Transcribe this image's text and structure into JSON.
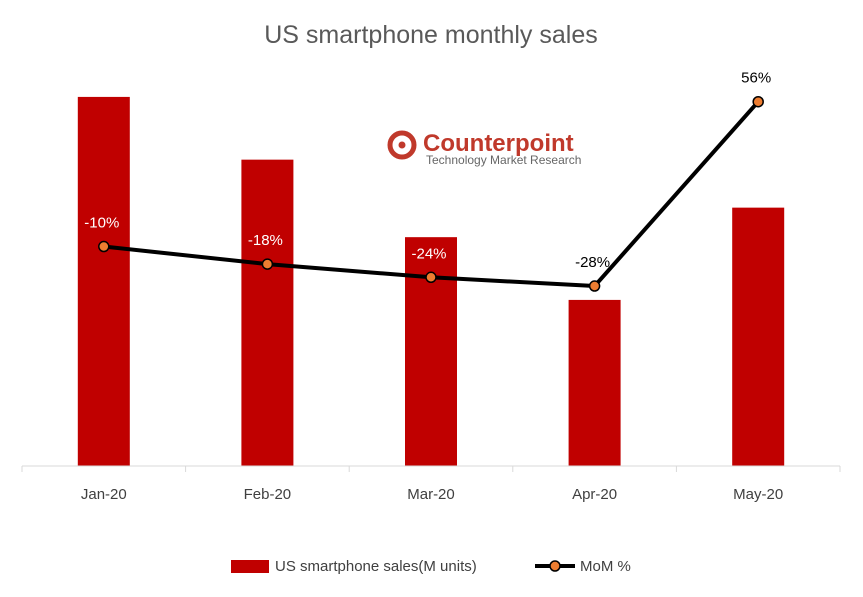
{
  "chart_data": {
    "type": "bar",
    "title": "US smartphone monthly sales",
    "categories": [
      "Jan-20",
      "Feb-20",
      "Mar-20",
      "Apr-20",
      "May-20"
    ],
    "series": [
      {
        "name": "US smartphone sales(M units)",
        "kind": "bar",
        "color": "#c00000",
        "values": [
          10.0,
          8.3,
          6.2,
          4.5,
          7.0
        ]
      },
      {
        "name": "MoM %",
        "kind": "line",
        "color": "#000000",
        "marker_color": "#ed7d31",
        "values": [
          -10,
          -18,
          -24,
          -28,
          56
        ],
        "labels": [
          "-10%",
          "-18%",
          "-24%",
          "-28%",
          "56%"
        ]
      }
    ],
    "xlabel": "",
    "ylabel": "",
    "bar_ylim": [
      0,
      11
    ],
    "line_ylim": [
      -110,
      75
    ],
    "grid": false,
    "legend_position": "bottom"
  },
  "watermark": {
    "brand": "Counterpoint",
    "tagline": "Technology Market Research"
  }
}
